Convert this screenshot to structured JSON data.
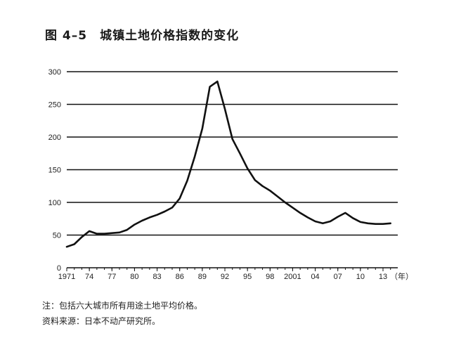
{
  "title": {
    "figure": "图 4–5",
    "text": "城镇土地价格指数的变化"
  },
  "notes": [
    "注：包括六大城市所有用途土地平均价格。",
    "资料来源：日本不动产研究所。"
  ],
  "chart_data": {
    "type": "line",
    "title": "城镇土地价格指数的变化",
    "xlabel": "",
    "ylabel": "",
    "ylim": [
      0,
      300
    ],
    "yticks": [
      0,
      50,
      100,
      150,
      200,
      250,
      300
    ],
    "xlim": [
      1971,
      2014
    ],
    "xticks": [
      {
        "x": 1971,
        "label": "1971"
      },
      {
        "x": 1974,
        "label": "74"
      },
      {
        "x": 1977,
        "label": "77"
      },
      {
        "x": 1980,
        "label": "80"
      },
      {
        "x": 1983,
        "label": "83"
      },
      {
        "x": 1986,
        "label": "86"
      },
      {
        "x": 1989,
        "label": "89"
      },
      {
        "x": 1992,
        "label": "92"
      },
      {
        "x": 1995,
        "label": "95"
      },
      {
        "x": 1998,
        "label": "98"
      },
      {
        "x": 2001,
        "label": "2001"
      },
      {
        "x": 2004,
        "label": "04"
      },
      {
        "x": 2007,
        "label": "07"
      },
      {
        "x": 2010,
        "label": "10"
      },
      {
        "x": 2013,
        "label": "13"
      }
    ],
    "x_unit_label": "（年）",
    "grid": true,
    "series": [
      {
        "x": [
          1971,
          1972,
          1973,
          1974,
          1975,
          1976,
          1977,
          1978,
          1979,
          1980,
          1981,
          1982,
          1983,
          1984,
          1985,
          1986,
          1987,
          1988,
          1989,
          1990,
          1991,
          1992,
          1993,
          1994,
          1995,
          1996,
          1997,
          1998,
          1999,
          2000,
          2001,
          2002,
          2003,
          2004,
          2005,
          2006,
          2007,
          2008,
          2009,
          2010,
          2011,
          2012,
          2013,
          2014
        ],
        "values": [
          32,
          36,
          47,
          56,
          52,
          52,
          53,
          54,
          58,
          66,
          72,
          77,
          81,
          86,
          92,
          106,
          133,
          170,
          213,
          277,
          285,
          243,
          197,
          175,
          152,
          134,
          125,
          118,
          109,
          100,
          92,
          84,
          77,
          71,
          68,
          71,
          78,
          84,
          76,
          70,
          68,
          67,
          67,
          68
        ]
      }
    ]
  }
}
